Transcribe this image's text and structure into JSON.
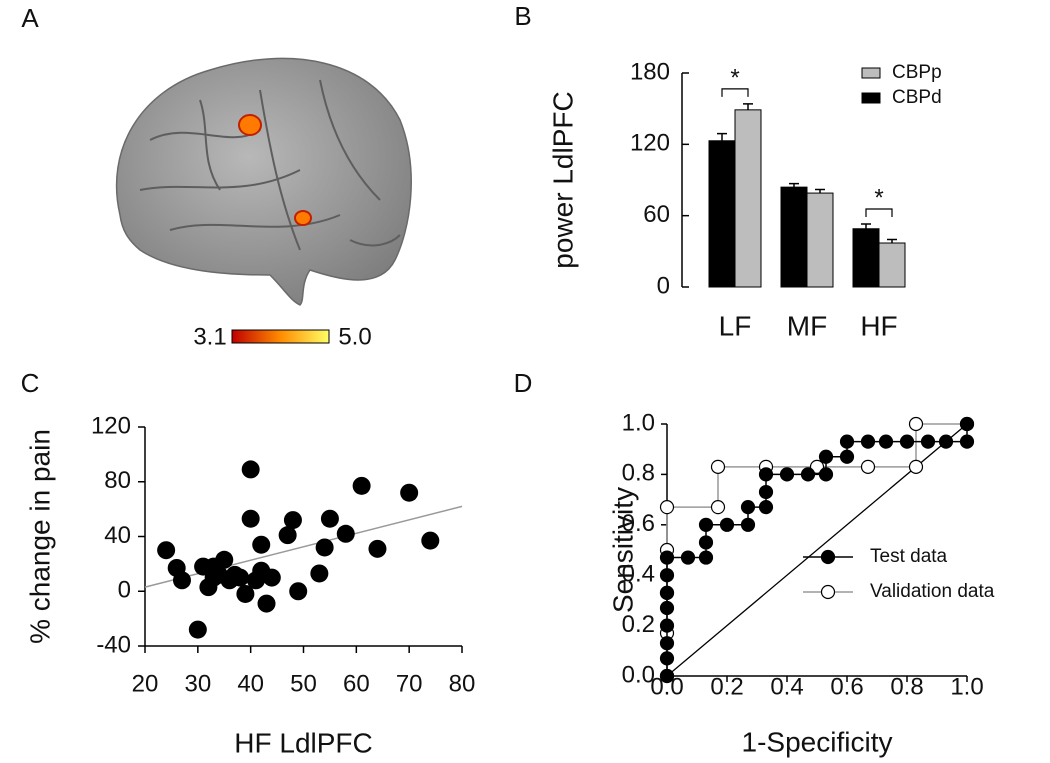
{
  "chart_data": [
    {
      "panel": "A",
      "type": "brain",
      "colorbar_ticks": [
        3.1,
        {
          "value": 5,
          "label": "5.0"
        }
      ]
    },
    {
      "panel": "B",
      "type": "bar",
      "ylabel": "power LdlPFC",
      "categories": [
        "LF",
        "MF",
        "HF"
      ],
      "series": [
        {
          "name": "CBPd",
          "color": "#000000",
          "values": [
            123,
            84,
            49
          ],
          "errors": [
            6,
            3,
            4
          ]
        },
        {
          "name": "CBPp",
          "color": "#bdbdbd",
          "values": [
            149,
            79,
            37
          ],
          "errors": [
            5,
            3,
            3
          ]
        }
      ],
      "significance": [
        {
          "category": "LF",
          "label": "*"
        },
        {
          "category": "HF",
          "label": "*"
        }
      ],
      "ylim": [
        0,
        180
      ],
      "yticks": [
        0,
        60,
        120,
        180
      ]
    },
    {
      "panel": "C",
      "type": "scatter",
      "xlabel": "HF LdlPFC",
      "ylabel": "% change in pain",
      "color": "#000000",
      "x": [
        24,
        26,
        27,
        30,
        31,
        32,
        33,
        33,
        34,
        35,
        36,
        37,
        38,
        39,
        40,
        40,
        41,
        42,
        42,
        43,
        44,
        47,
        48,
        49,
        53,
        54,
        55,
        58,
        61,
        64,
        70,
        74
      ],
      "y": [
        30,
        17,
        8,
        -28,
        18,
        3,
        10,
        18,
        12,
        23,
        8,
        12,
        10,
        -2,
        89,
        53,
        8,
        34,
        15,
        -9,
        10,
        41,
        52,
        0,
        13,
        32,
        53,
        42,
        77,
        31,
        72,
        37
      ],
      "trend": {
        "x": [
          20,
          80
        ],
        "y": [
          3,
          62
        ],
        "color": "#999999"
      },
      "xlim": [
        20,
        80
      ],
      "xticks": [
        20,
        30,
        40,
        50,
        60,
        70,
        80
      ],
      "ylim": [
        -40,
        120
      ],
      "yticks": [
        -40,
        0,
        40,
        80,
        120
      ]
    },
    {
      "panel": "D",
      "type": "roc",
      "xlabel": "1-Specificity",
      "ylabel": "Sensitivity",
      "series": [
        {
          "name": "Test data",
          "color": "#000000",
          "fill": "#000000",
          "x": [
            0,
            0,
            0,
            0,
            0,
            0,
            0,
            0,
            0.07,
            0.13,
            0.13,
            0.13,
            0.2,
            0.27,
            0.27,
            0.33,
            0.33,
            0.33,
            0.4,
            0.47,
            0.53,
            0.53,
            0.6,
            0.6,
            0.67,
            0.73,
            0.8,
            0.87,
            0.93,
            1,
            1
          ],
          "y": [
            0,
            0.07,
            0.13,
            0.2,
            0.27,
            0.33,
            0.4,
            0.47,
            0.47,
            0.47,
            0.53,
            0.6,
            0.6,
            0.6,
            0.67,
            0.67,
            0.73,
            0.8,
            0.8,
            0.8,
            0.8,
            0.87,
            0.87,
            0.93,
            0.93,
            0.93,
            0.93,
            0.93,
            0.93,
            0.93,
            1
          ]
        },
        {
          "name": "Validation data",
          "color": "#999999",
          "fill": "#ffffff",
          "x": [
            0,
            0,
            0,
            0,
            0,
            0.17,
            0.17,
            0.33,
            0.5,
            0.67,
            0.83,
            0.83,
            1
          ],
          "y": [
            0,
            0.17,
            0.33,
            0.5,
            0.67,
            0.67,
            0.83,
            0.83,
            0.83,
            0.83,
            0.83,
            1,
            1
          ]
        }
      ],
      "reference": {
        "x": [
          0,
          1
        ],
        "y": [
          0,
          1
        ]
      },
      "xlim": [
        0,
        1
      ],
      "xticks": [
        {
          "value": 0,
          "label": "0.0"
        },
        0.2,
        0.4,
        0.6,
        0.8,
        {
          "value": 1,
          "label": "1.0"
        }
      ],
      "ylim": [
        0,
        1
      ],
      "yticks": [
        {
          "value": 0,
          "label": "0.0"
        },
        0.2,
        0.4,
        0.6,
        0.8,
        {
          "value": 1,
          "label": "1.0"
        }
      ]
    }
  ]
}
